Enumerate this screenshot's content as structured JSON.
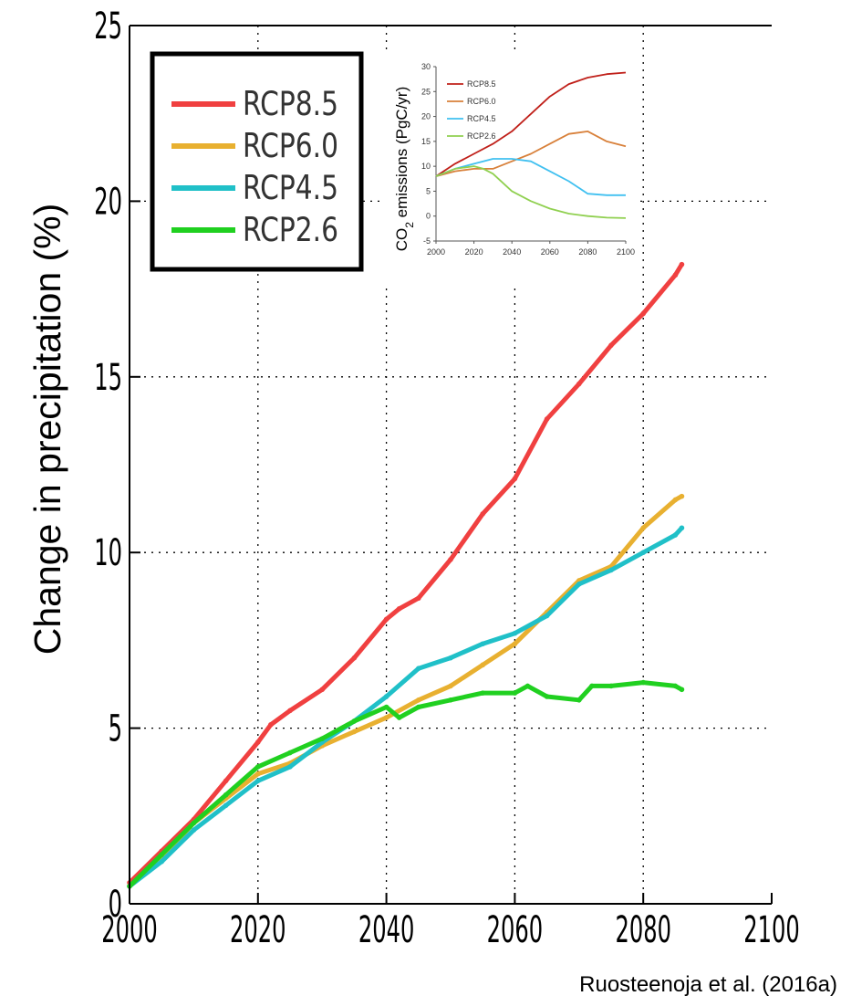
{
  "credit": "Ruosteenoja et al. (2016a)",
  "chart_data": [
    {
      "type": "line",
      "xlabel": "",
      "ylabel": "Change in precipitation (%)",
      "xlim": [
        2000,
        2100
      ],
      "ylim": [
        0,
        25
      ],
      "xticks": [
        "2000",
        "2020",
        "2040",
        "2060",
        "2080",
        "2100"
      ],
      "yticks": [
        "0",
        "5",
        "10",
        "15",
        "20",
        "25"
      ],
      "grid": "dotted",
      "legend": "top-left",
      "series": [
        {
          "name": "RCP8.5",
          "color": "#f04040",
          "x": [
            2000,
            2005,
            2010,
            2015,
            2020,
            2022,
            2025,
            2030,
            2035,
            2040,
            2042,
            2045,
            2050,
            2055,
            2060,
            2065,
            2070,
            2075,
            2080,
            2085,
            2086
          ],
          "y": [
            0.6,
            1.5,
            2.4,
            3.5,
            4.6,
            5.1,
            5.5,
            6.1,
            7.0,
            8.1,
            8.4,
            8.7,
            9.8,
            11.1,
            12.1,
            13.8,
            14.8,
            15.9,
            16.8,
            17.9,
            18.2
          ]
        },
        {
          "name": "RCP6.0",
          "color": "#e8b030",
          "x": [
            2000,
            2005,
            2010,
            2015,
            2020,
            2025,
            2030,
            2035,
            2040,
            2045,
            2050,
            2055,
            2060,
            2065,
            2070,
            2075,
            2080,
            2085,
            2086
          ],
          "y": [
            0.5,
            1.3,
            2.3,
            3.0,
            3.7,
            4.0,
            4.5,
            4.9,
            5.3,
            5.8,
            6.2,
            6.8,
            7.4,
            8.3,
            9.2,
            9.6,
            10.7,
            11.5,
            11.6
          ]
        },
        {
          "name": "RCP4.5",
          "color": "#20c0c8",
          "x": [
            2000,
            2005,
            2010,
            2015,
            2020,
            2025,
            2030,
            2035,
            2040,
            2045,
            2050,
            2055,
            2060,
            2065,
            2070,
            2075,
            2080,
            2085,
            2086
          ],
          "y": [
            0.5,
            1.2,
            2.1,
            2.8,
            3.5,
            3.9,
            4.6,
            5.2,
            5.9,
            6.7,
            7.0,
            7.4,
            7.7,
            8.2,
            9.1,
            9.5,
            10.0,
            10.5,
            10.7
          ]
        },
        {
          "name": "RCP2.6",
          "color": "#20d020",
          "x": [
            2000,
            2005,
            2010,
            2015,
            2020,
            2025,
            2030,
            2035,
            2040,
            2042,
            2045,
            2050,
            2055,
            2060,
            2062,
            2065,
            2070,
            2072,
            2075,
            2080,
            2085,
            2086
          ],
          "y": [
            0.5,
            1.4,
            2.3,
            3.1,
            3.9,
            4.3,
            4.7,
            5.2,
            5.6,
            5.3,
            5.6,
            5.8,
            6.0,
            6.0,
            6.2,
            5.9,
            5.8,
            6.2,
            6.2,
            6.3,
            6.2,
            6.1
          ]
        }
      ]
    },
    {
      "type": "line",
      "xlabel": "",
      "ylabel": "CO2 emissions (PgC/yr)",
      "ylabel_main": "CO",
      "ylabel_sub": "2",
      "ylabel_rest": " emissions  (PgC/yr)",
      "xlim": [
        2000,
        2100
      ],
      "ylim": [
        -5,
        30
      ],
      "xticks": [
        "2000",
        "2020",
        "2040",
        "2060",
        "2080",
        "2100"
      ],
      "yticks": [
        "-5",
        "0",
        "5",
        "10",
        "15",
        "20",
        "25",
        "30"
      ],
      "grid": "none",
      "legend": "top-left",
      "series": [
        {
          "name": "RCP8.5",
          "color": "#c0201a",
          "x": [
            2000,
            2010,
            2020,
            2030,
            2040,
            2050,
            2060,
            2070,
            2080,
            2090,
            2100
          ],
          "y": [
            8,
            10.5,
            12.5,
            14.5,
            17,
            20.5,
            24,
            26.5,
            27.8,
            28.5,
            28.8
          ]
        },
        {
          "name": "RCP6.0",
          "color": "#d8803a",
          "x": [
            2000,
            2010,
            2020,
            2030,
            2040,
            2050,
            2060,
            2070,
            2080,
            2090,
            2100
          ],
          "y": [
            8,
            9,
            9.5,
            9.5,
            11,
            12.5,
            14.5,
            16.5,
            17,
            15,
            14
          ]
        },
        {
          "name": "RCP4.5",
          "color": "#40c0f0",
          "x": [
            2000,
            2010,
            2020,
            2030,
            2040,
            2050,
            2060,
            2070,
            2080,
            2090,
            2100
          ],
          "y": [
            8,
            9.5,
            10.5,
            11.5,
            11.5,
            11,
            9,
            7,
            4.5,
            4.2,
            4.2
          ]
        },
        {
          "name": "RCP2.6",
          "color": "#90d050",
          "x": [
            2000,
            2010,
            2020,
            2025,
            2030,
            2040,
            2050,
            2060,
            2070,
            2080,
            2090,
            2100
          ],
          "y": [
            8,
            9.5,
            10,
            9.5,
            8.5,
            5,
            3,
            1.5,
            0.5,
            0,
            -0.3,
            -0.4
          ]
        }
      ]
    }
  ]
}
